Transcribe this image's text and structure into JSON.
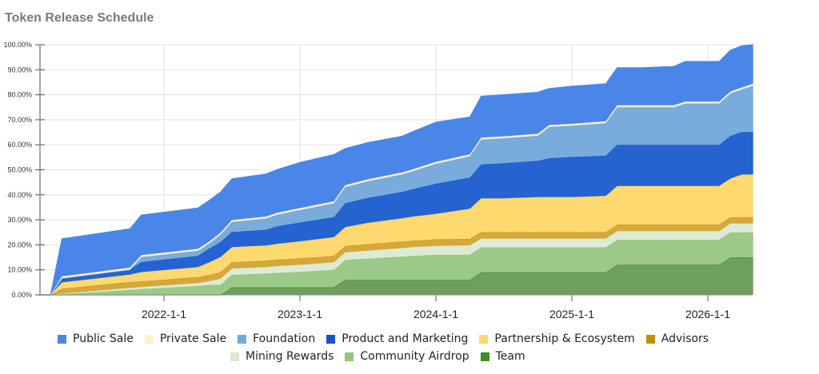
{
  "chart_data": {
    "type": "area",
    "stacked": true,
    "title": "Token Release Schedule",
    "xlabel": "",
    "ylabel": "",
    "ylim": [
      0,
      100
    ],
    "y_tick_labels": [
      "0.00%",
      "10.00%",
      "20.00%",
      "30.00%",
      "40.00%",
      "50.00%",
      "60.00%",
      "70.00%",
      "80.00%",
      "90.00%",
      "100.00%"
    ],
    "x_tick_labels": [
      "2022-1-1",
      "2023-1-1",
      "2024-1-1",
      "2025-1-1",
      "2026-1-1"
    ],
    "x_tick_months": [
      12,
      24,
      36,
      48,
      60
    ],
    "x_unit": "months since 2021-1",
    "x": [
      1,
      2,
      3,
      9,
      10,
      15,
      16,
      17,
      18,
      21,
      22,
      24,
      27,
      28,
      30,
      33,
      34,
      36,
      39,
      40,
      42,
      45,
      46,
      48,
      51,
      52,
      54,
      57,
      58,
      60,
      61,
      62,
      63,
      64
    ],
    "grid": true,
    "legend_position": "bottom",
    "series": [
      {
        "name": "Team",
        "color": "#3d8b27",
        "fill": "#6e9f5c",
        "values": [
          0,
          0,
          0,
          0,
          0,
          0,
          0,
          0,
          3,
          3,
          3,
          3,
          3,
          6,
          6,
          6,
          6,
          6,
          6,
          9,
          9,
          9,
          9,
          9,
          9,
          12,
          12,
          12,
          12,
          12,
          12,
          15,
          15,
          15
        ]
      },
      {
        "name": "Community Airdrop",
        "color": "#93c47d",
        "fill": "#9cc987",
        "values": [
          0,
          0,
          0.3,
          2,
          2.3,
          3.5,
          4,
          4,
          5,
          5.5,
          5.8,
          6.2,
          7,
          8,
          8.5,
          9.3,
          9.6,
          10,
          10,
          10,
          10,
          10,
          10,
          10,
          10,
          10,
          10,
          10,
          10,
          10,
          10,
          10,
          10,
          10
        ]
      },
      {
        "name": "Mining Rewards",
        "color": "#d9ead3",
        "fill": "#dcebd6",
        "values": [
          0,
          0,
          0.2,
          0.8,
          0.8,
          1.2,
          1.5,
          2.5,
          2.5,
          2.6,
          2.7,
          2.8,
          3,
          3,
          3.2,
          3.4,
          3.5,
          3.6,
          3.8,
          3.5,
          3.5,
          3.5,
          3.5,
          3.5,
          3.5,
          3.5,
          3.5,
          3.5,
          3.5,
          3.5,
          3.5,
          3.5,
          3.5,
          3.5
        ]
      },
      {
        "name": "Advisors",
        "color": "#bf9000",
        "fill": "#d6a73a",
        "values": [
          0,
          0,
          2,
          2.3,
          2.3,
          2.4,
          2.5,
          2.6,
          2.6,
          2.6,
          2.6,
          2.6,
          2.6,
          2.6,
          2.6,
          2.6,
          2.6,
          2.6,
          2.6,
          2.6,
          2.6,
          2.6,
          2.6,
          2.6,
          2.6,
          2.6,
          2.6,
          2.6,
          2.6,
          2.6,
          2.6,
          2.6,
          2.6,
          2.6
        ]
      },
      {
        "name": "Partnership & Ecosystem",
        "color": "#ffd966",
        "fill": "#fdd970",
        "values": [
          0,
          0,
          2.5,
          3,
          3.7,
          4,
          5,
          6,
          6,
          6,
          6.3,
          6.8,
          7.5,
          7.5,
          8.5,
          9.3,
          9.6,
          10.2,
          12,
          13.5,
          13.5,
          14,
          14,
          14,
          14.5,
          15.4,
          15.4,
          15.4,
          15.4,
          15.4,
          15.4,
          15.4,
          17,
          17
        ]
      },
      {
        "name": "Product and Marketing",
        "color": "#1155cc",
        "fill": "#2563d0",
        "values": [
          0,
          0,
          1.6,
          2,
          4,
          4.5,
          5.5,
          6,
          6,
          6.3,
          7,
          7.5,
          8,
          9.5,
          10,
          10.5,
          11,
          12,
          12.5,
          13.5,
          14,
          14.5,
          15.5,
          16,
          16,
          16.5,
          16.5,
          16.5,
          16.5,
          16.5,
          16.5,
          17,
          17,
          17
        ]
      },
      {
        "name": "Foundation",
        "color": "#6fa8dc",
        "fill": "#79acdc",
        "values": [
          0,
          0,
          0,
          0,
          2,
          2,
          2,
          3,
          4,
          4.5,
          4.6,
          5,
          5.5,
          6.5,
          6.6,
          7,
          7.2,
          8,
          8.5,
          10,
          10,
          10,
          12.5,
          12.5,
          13,
          15,
          15,
          15,
          16.5,
          16.5,
          16.5,
          17,
          17,
          18.5
        ]
      },
      {
        "name": "Private Sale",
        "color": "#fff2cc",
        "fill": "#fbefc9",
        "values": [
          0,
          0,
          0.8,
          0.8,
          0.8,
          0.8,
          0.8,
          0.8,
          0.8,
          0.8,
          0.8,
          0.8,
          0.8,
          0.8,
          0.8,
          0.8,
          0.8,
          0.8,
          0.8,
          0.8,
          0.8,
          0.8,
          0.8,
          0.8,
          0.8,
          0.8,
          0.8,
          0.8,
          0.8,
          0.8,
          0.8,
          0.8,
          0.8,
          0.8
        ]
      },
      {
        "name": "Public Sale",
        "color": "#4a86e8",
        "fill": "#4a86e8",
        "values": [
          0,
          0,
          15,
          15.5,
          16,
          16.3,
          16.5,
          16.2,
          16.5,
          17,
          17.3,
          18.2,
          18.7,
          14.6,
          14.7,
          14.5,
          15,
          15.8,
          14.9,
          16.5,
          16.6,
          16.6,
          14.6,
          15,
          15,
          15,
          15,
          15.5,
          16,
          16,
          16,
          16.5,
          16.7,
          15.6
        ]
      }
    ]
  },
  "legend": {
    "row1": [
      "Public Sale",
      "Private Sale",
      "Foundation",
      "Product and Marketing",
      "Partnership & Ecosystem",
      "Advisors"
    ],
    "row2": [
      "Mining Rewards",
      "Community Airdrop",
      "Team"
    ]
  }
}
